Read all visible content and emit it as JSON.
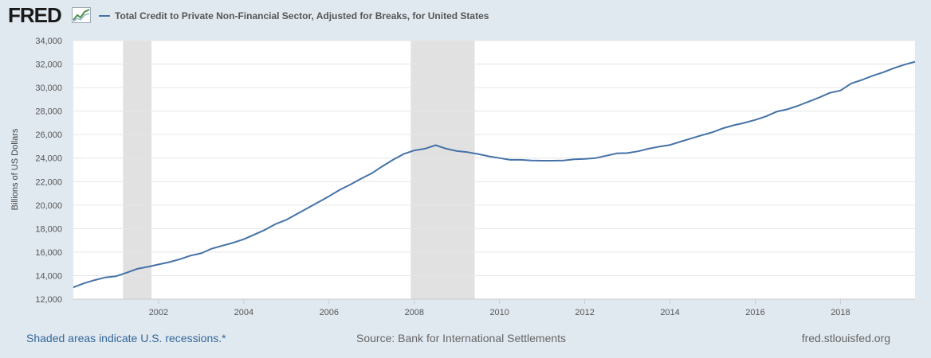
{
  "header": {
    "logo_text": "FRED",
    "logo_icon": "chart-line-icon"
  },
  "legend": {
    "label": "Total Credit to Private Non-Financial Sector, Adjusted for Breaks, for United States",
    "color": "#4572a7"
  },
  "footer": {
    "recessions_note": "Shaded areas indicate U.S. recessions.*",
    "source": "Source: Bank for International Settlements",
    "site": "fred.stlouisfed.org"
  },
  "colors": {
    "background": "#e1e9f0",
    "plot_background": "#ffffff",
    "series": "#4572a7",
    "recession": "#e1e1e1",
    "link": "#336699"
  },
  "chart_data": {
    "type": "line",
    "title": "",
    "xlabel": "",
    "ylabel": "Billions of US Dollars",
    "xlim": [
      "2000-01-01",
      "2019-10-01"
    ],
    "ylim": [
      12000,
      34000
    ],
    "x_ticks": [
      "2002",
      "2004",
      "2006",
      "2008",
      "2010",
      "2012",
      "2014",
      "2016",
      "2018"
    ],
    "y_ticks": [
      "12,000",
      "14,000",
      "16,000",
      "18,000",
      "20,000",
      "22,000",
      "24,000",
      "26,000",
      "28,000",
      "30,000",
      "32,000",
      "34,000"
    ],
    "grid": true,
    "legend_position": "top-left",
    "recessions": [
      {
        "start": "2001-03-01",
        "end": "2001-11-01"
      },
      {
        "start": "2007-12-01",
        "end": "2009-06-01"
      }
    ],
    "series": [
      {
        "name": "Total Credit to Private Non-Financial Sector, Adjusted for Breaks, for United States",
        "x": [
          "2000-01-01",
          "2000-04-01",
          "2000-07-01",
          "2000-10-01",
          "2001-01-01",
          "2001-04-01",
          "2001-07-01",
          "2001-10-01",
          "2002-01-01",
          "2002-04-01",
          "2002-07-01",
          "2002-10-01",
          "2003-01-01",
          "2003-04-01",
          "2003-07-01",
          "2003-10-01",
          "2004-01-01",
          "2004-04-01",
          "2004-07-01",
          "2004-10-01",
          "2005-01-01",
          "2005-04-01",
          "2005-07-01",
          "2005-10-01",
          "2006-01-01",
          "2006-04-01",
          "2006-07-01",
          "2006-10-01",
          "2007-01-01",
          "2007-04-01",
          "2007-07-01",
          "2007-10-01",
          "2008-01-01",
          "2008-04-01",
          "2008-07-01",
          "2008-10-01",
          "2009-01-01",
          "2009-04-01",
          "2009-07-01",
          "2009-10-01",
          "2010-01-01",
          "2010-04-01",
          "2010-07-01",
          "2010-10-01",
          "2011-01-01",
          "2011-04-01",
          "2011-07-01",
          "2011-10-01",
          "2012-01-01",
          "2012-04-01",
          "2012-07-01",
          "2012-10-01",
          "2013-01-01",
          "2013-04-01",
          "2013-07-01",
          "2013-10-01",
          "2014-01-01",
          "2014-04-01",
          "2014-07-01",
          "2014-10-01",
          "2015-01-01",
          "2015-04-01",
          "2015-07-01",
          "2015-10-01",
          "2016-01-01",
          "2016-04-01",
          "2016-07-01",
          "2016-10-01",
          "2017-01-01",
          "2017-04-01",
          "2017-07-01",
          "2017-10-01",
          "2018-01-01",
          "2018-04-01",
          "2018-07-01",
          "2018-10-01",
          "2019-01-01",
          "2019-04-01",
          "2019-07-01",
          "2019-10-01"
        ],
        "values": [
          13000,
          13350,
          13620,
          13850,
          13950,
          14250,
          14580,
          14750,
          14950,
          15150,
          15400,
          15700,
          15900,
          16300,
          16550,
          16800,
          17100,
          17500,
          17900,
          18400,
          18750,
          19250,
          19750,
          20250,
          20750,
          21300,
          21750,
          22250,
          22700,
          23300,
          23850,
          24350,
          24650,
          24800,
          25100,
          24800,
          24600,
          24500,
          24350,
          24150,
          24000,
          23850,
          23850,
          23800,
          23780,
          23780,
          23800,
          23900,
          23930,
          24000,
          24200,
          24400,
          24430,
          24580,
          24800,
          24980,
          25120,
          25400,
          25680,
          25950,
          26200,
          26550,
          26800,
          27000,
          27250,
          27550,
          27950,
          28150,
          28450,
          28800,
          29150,
          29550,
          29750,
          30350,
          30650,
          31000,
          31300,
          31650,
          31950,
          32200
        ]
      }
    ]
  }
}
